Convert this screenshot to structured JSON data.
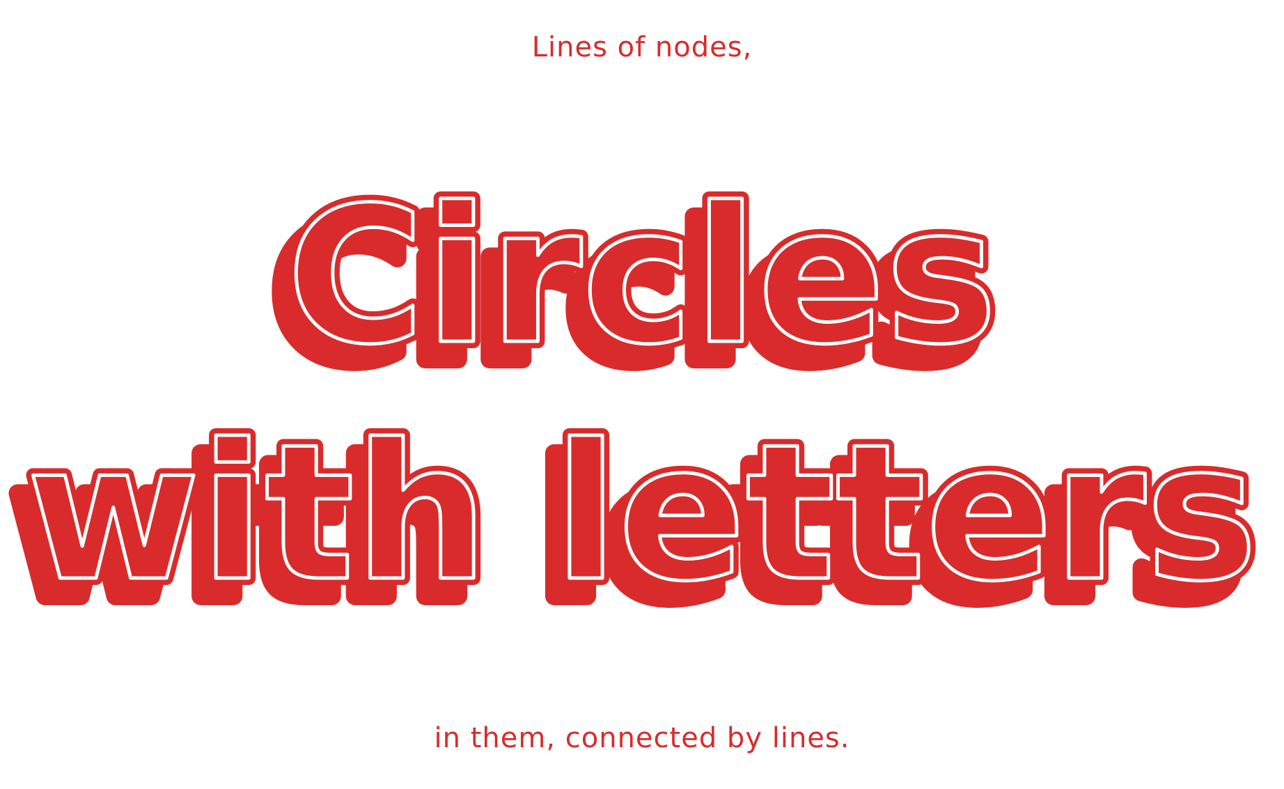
{
  "heading_top": "Lines of nodes,",
  "headline": {
    "line1": "Circles",
    "line2": "with letters"
  },
  "heading_bottom": "in them, connected by lines.",
  "colors": {
    "accent": "#d92b2b",
    "background": "#ffffff"
  }
}
